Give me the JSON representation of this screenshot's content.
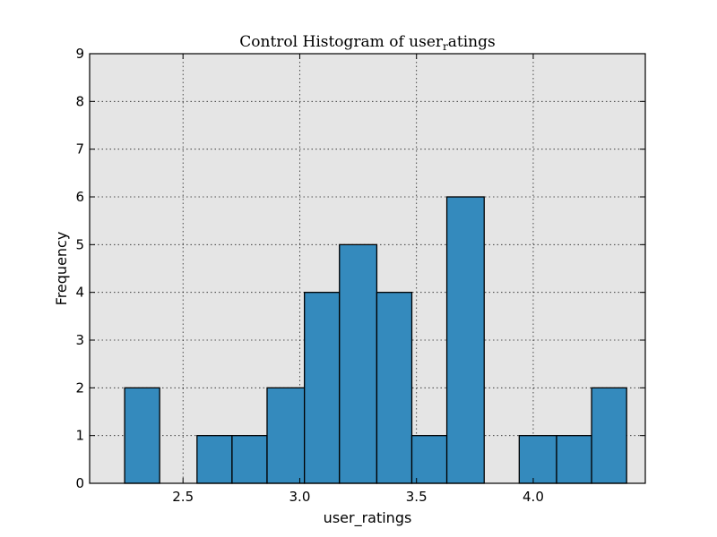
{
  "chart_data": {
    "type": "bar",
    "title_prefix": "Control Histogram of user",
    "title_subscript": "r",
    "title_suffix": "atings",
    "xlabel": "user_ratings",
    "ylabel": "Frequency",
    "xlim": [
      2.1,
      4.48
    ],
    "ylim": [
      0,
      9
    ],
    "xticks": [
      2.5,
      3.0,
      3.5,
      4.0
    ],
    "xtick_labels": [
      "2.5",
      "3.0",
      "3.5",
      "4.0"
    ],
    "yticks": [
      0,
      1,
      2,
      3,
      4,
      5,
      6,
      7,
      8,
      9
    ],
    "ytick_labels": [
      "0",
      "1",
      "2",
      "3",
      "4",
      "5",
      "6",
      "7",
      "8",
      "9"
    ],
    "bins": [
      2.25,
      2.4,
      2.56,
      2.71,
      2.86,
      3.02,
      3.17,
      3.33,
      3.48,
      3.63,
      3.79,
      3.94,
      4.1,
      4.25,
      4.4
    ],
    "counts": [
      2,
      0,
      1,
      1,
      2,
      4,
      5,
      4,
      1,
      6,
      0,
      1,
      1,
      2
    ],
    "grid": true,
    "colors": {
      "bar_fill": "#348abd",
      "plot_background": "#e5e5e5"
    }
  }
}
